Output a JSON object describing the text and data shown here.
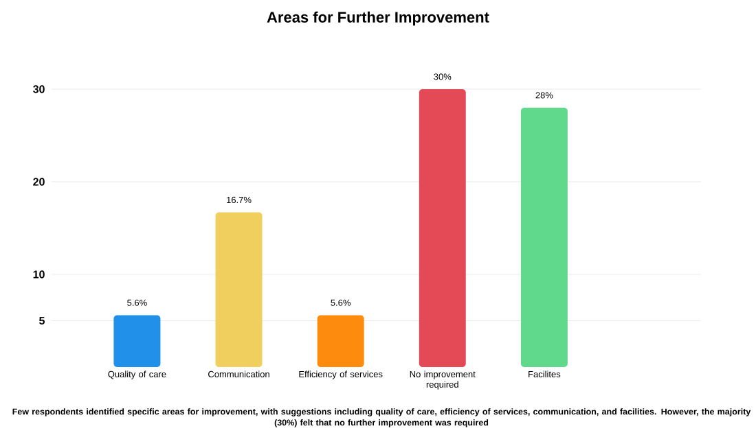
{
  "chart_data": {
    "type": "bar",
    "title": "Areas for Further Improvement",
    "categories": [
      "Quality of care",
      "Communication",
      "Efficiency of services",
      "No improvement required",
      "Facilites"
    ],
    "values": [
      5.6,
      16.7,
      5.6,
      30,
      28
    ],
    "colors": [
      "#2190e8",
      "#f0cf5e",
      "#fd8c0e",
      "#e44a55",
      "#60d98c"
    ],
    "value_labels": [
      "5.6%",
      "16.7%",
      "5.6%",
      "30%",
      "28%"
    ],
    "ylim": [
      0,
      30
    ],
    "yticks": [
      5,
      10,
      20,
      30
    ],
    "grid": "y",
    "annotations": [
      "Few respondents identified specific areas for improvement, with suggestions including quality of care, efficiency of services, communication, and facilities. However, the majority (30%) felt that no further improvement was required"
    ]
  }
}
